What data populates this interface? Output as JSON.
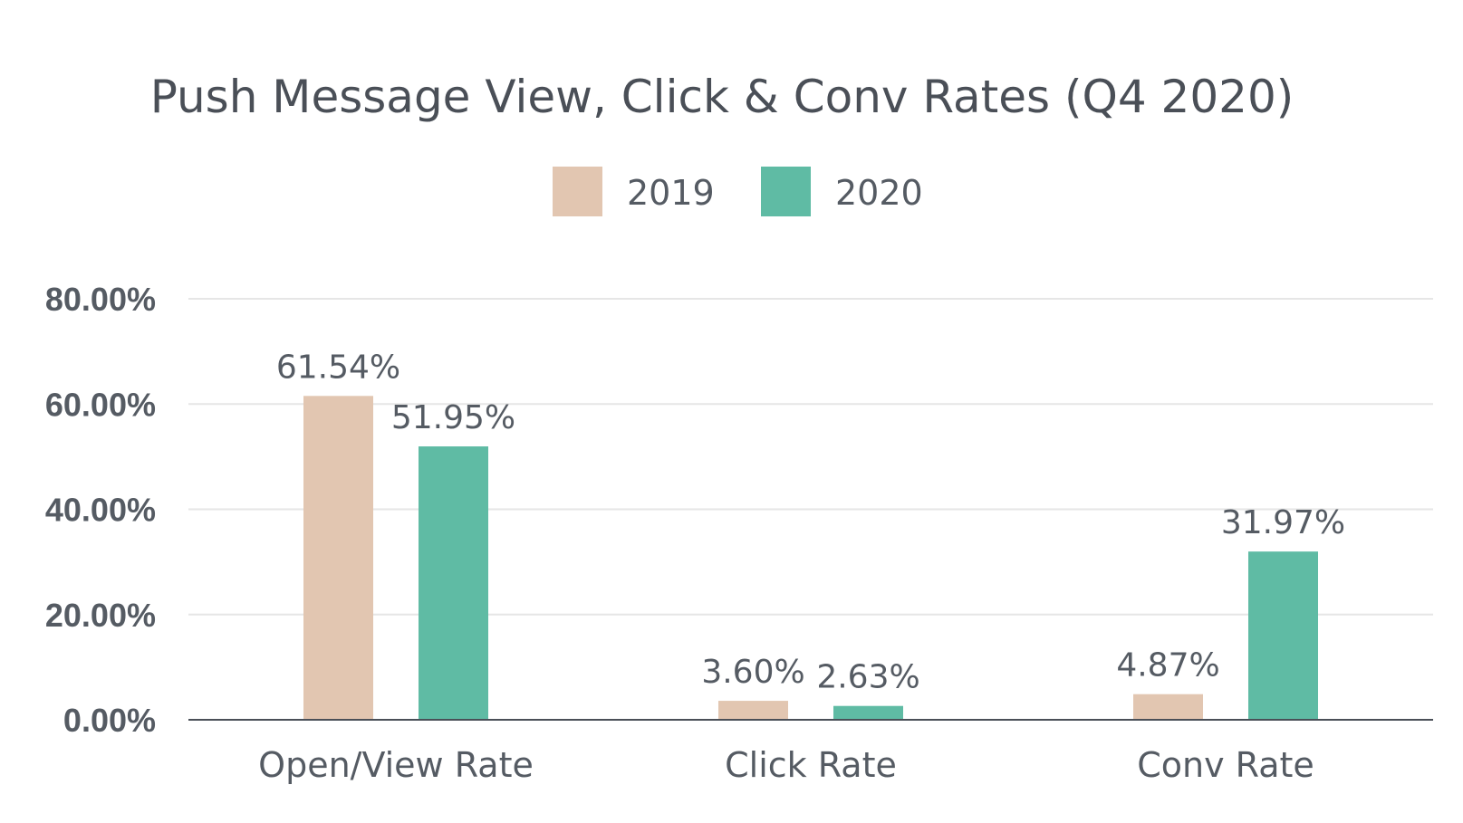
{
  "chart_data": {
    "type": "bar",
    "title": "Push Message View, Click & Conv Rates (Q4 2020)",
    "categories": [
      "Open/View Rate",
      "Click Rate",
      "Conv Rate"
    ],
    "series": [
      {
        "name": "2019",
        "values": [
          61.54,
          3.6,
          4.87
        ],
        "labels": [
          "61.54%",
          "3.60%",
          "4.87%"
        ],
        "color": "#e2c6b1"
      },
      {
        "name": "2020",
        "values": [
          51.95,
          2.63,
          31.97
        ],
        "labels": [
          "51.95%",
          "2.63%",
          "31.97%"
        ],
        "color": "#5fbba4"
      }
    ],
    "ylim": [
      0,
      80
    ],
    "yticks": [
      0,
      20,
      40,
      60,
      80
    ],
    "ytick_labels": [
      "0.00%",
      "20.00%",
      "40.00%",
      "60.00%",
      "80.00%"
    ],
    "xlabel": "",
    "ylabel": "",
    "grid": true,
    "legend_position": "top-center"
  }
}
